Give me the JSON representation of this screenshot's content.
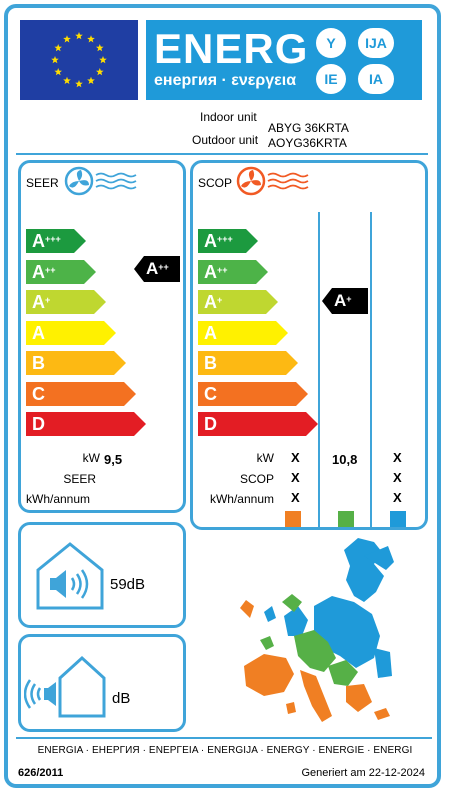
{
  "header": {
    "energ_word": "ENERG",
    "energ_sub": "енергия · ενεργεια",
    "bubbles": [
      "Y",
      "IJA",
      "IE",
      "IA"
    ]
  },
  "units": {
    "indoor_label": "Indoor unit",
    "outdoor_label": "Outdoor unit",
    "indoor_model": "ABYG 36KRTA",
    "outdoor_model": "AOYG36KRTA"
  },
  "seer": {
    "title": "SEER",
    "classes": [
      "A+++",
      "A++",
      "A+",
      "A",
      "B",
      "C",
      "D"
    ],
    "rating": "A++",
    "kw_label": "kW",
    "kw_value": "9,5",
    "seer_label": "SEER",
    "kwh_label": "kWh/annum"
  },
  "scop": {
    "title": "SCOP",
    "classes": [
      "A+++",
      "A++",
      "A+",
      "A",
      "B",
      "C",
      "D"
    ],
    "rating": "A+",
    "kw_label": "kW",
    "scop_label": "SCOP",
    "kwh_label": "kWh/annum",
    "colder": {
      "kw": "X",
      "scop": "X",
      "kwh": "X"
    },
    "average": {
      "kw": "10,8"
    },
    "warmer": {
      "kw": "X",
      "scop": "X",
      "kwh": "X"
    }
  },
  "colors": {
    "border": "#3fa4d9",
    "flag": "#1f3ea3",
    "energy": "#1f9ad9",
    "classes": [
      "#1c9a3f",
      "#4db348",
      "#bfd730",
      "#fff100",
      "#fdb913",
      "#f37121",
      "#e31d24"
    ],
    "zone_cold": "#f07f23",
    "zone_average": "#56b047",
    "zone_warm": "#1f9ad9"
  },
  "noise": {
    "indoor": "59dB",
    "outdoor": "dB"
  },
  "footer": {
    "languages": "ENERGIA · ЕНЕРГИЯ · ΕΝΕΡΓΕΙΑ · ENERGIJA · ENERGY · ENERGIE · ENERGI",
    "regulation": "626/2011",
    "generated": "Generiert am 22-12-2024"
  }
}
